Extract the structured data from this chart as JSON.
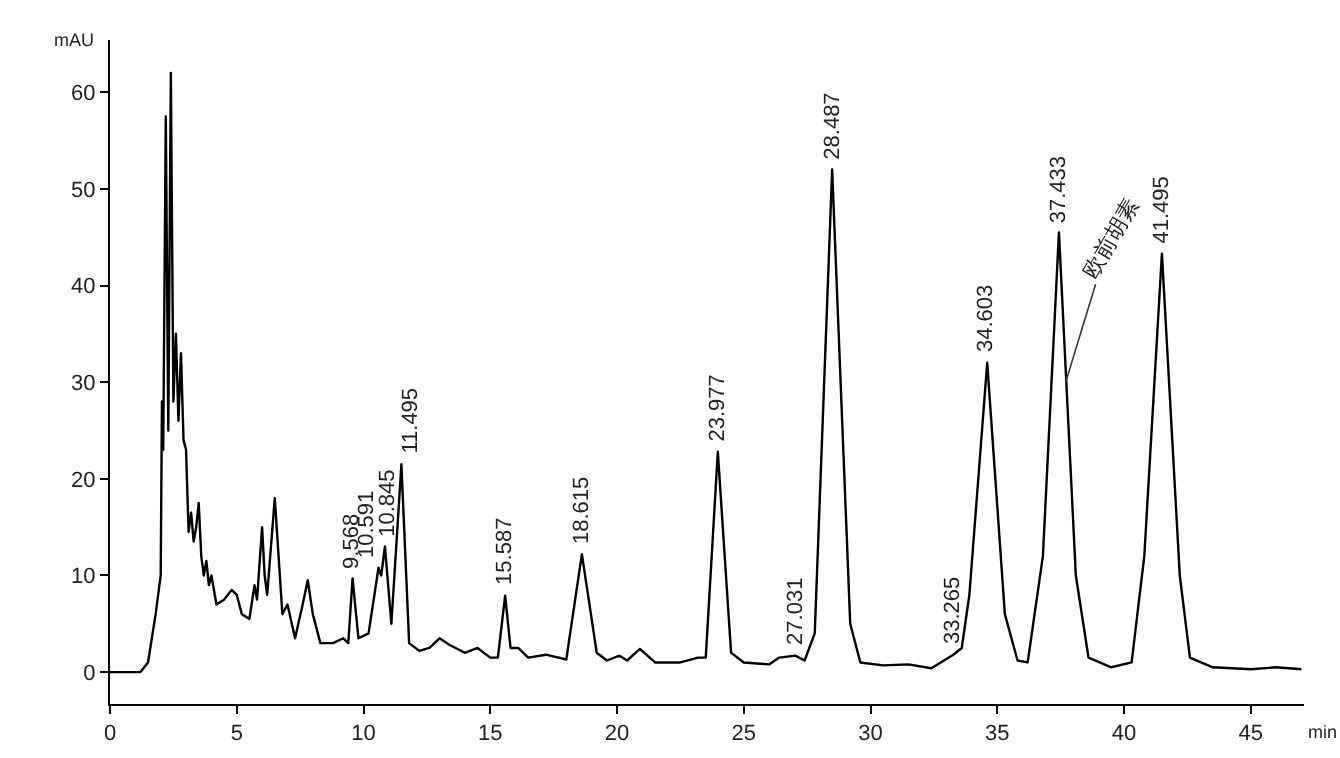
{
  "chart_data": {
    "type": "line",
    "xlabel": "min",
    "ylabel": "mAU",
    "xlim": [
      0,
      47.1
    ],
    "ylim": [
      -3.3,
      65.4
    ],
    "xticks": [
      0,
      5,
      10,
      15,
      20,
      25,
      30,
      35,
      40,
      45
    ],
    "yticks": [
      0,
      10,
      20,
      30,
      40,
      50,
      60
    ],
    "grid": false,
    "marker": "none",
    "line_style": "solid",
    "series": [
      {
        "color": "#000000",
        "x": [
          0,
          1.2,
          1.5,
          1.8,
          2.0,
          2.05,
          2.1,
          2.2,
          2.3,
          2.4,
          2.5,
          2.6,
          2.7,
          2.8,
          2.9,
          3.0,
          3.1,
          3.2,
          3.3,
          3.4,
          3.5,
          3.6,
          3.7,
          3.8,
          3.9,
          4.0,
          4.2,
          4.5,
          4.8,
          5.0,
          5.2,
          5.5,
          5.7,
          5.8,
          6.0,
          6.1,
          6.2,
          6.5,
          6.6,
          6.8,
          7.0,
          7.3,
          7.6,
          7.8,
          8.0,
          8.3,
          8.8,
          9.2,
          9.4,
          9.568,
          9.8,
          10.2,
          10.591,
          10.7,
          10.845,
          11.1,
          11.495,
          11.8,
          12.2,
          12.6,
          13.0,
          13.4,
          14.0,
          14.5,
          15.0,
          15.3,
          15.587,
          15.8,
          16.1,
          16.5,
          17.2,
          18.0,
          18.615,
          19.2,
          19.6,
          20.1,
          20.4,
          20.9,
          21.5,
          22.5,
          23.2,
          23.5,
          23.977,
          24.5,
          25,
          26,
          26.4,
          27.031,
          27.4,
          27.8,
          28.487,
          29.2,
          29.6,
          30.5,
          31.5,
          32.4,
          33.265,
          33.6,
          33.9,
          34.603,
          35.3,
          35.8,
          36.2,
          36.8,
          37.433,
          38.1,
          38.6,
          39.5,
          40.3,
          40.8,
          41.495,
          42.2,
          42.6,
          43.5,
          45,
          46,
          47
        ],
        "values": [
          0,
          0,
          1,
          6,
          10,
          28,
          23,
          57.5,
          25,
          62,
          28,
          35,
          26,
          33,
          24,
          23,
          14.5,
          16.5,
          13.5,
          15,
          17.5,
          12,
          10,
          11.5,
          9,
          10,
          7,
          7.5,
          8.5,
          8,
          6,
          5.5,
          9,
          7.5,
          15,
          10,
          8,
          18,
          14,
          6,
          7,
          3.5,
          7,
          9.5,
          6,
          3,
          3,
          3.5,
          3,
          9.7,
          3.5,
          4,
          10.8,
          10,
          13,
          5,
          21.5,
          3,
          2.2,
          2.5,
          3.5,
          2.8,
          2,
          2.5,
          1.5,
          1.5,
          7.9,
          2.5,
          2.5,
          1.5,
          1.8,
          1.3,
          12.2,
          2,
          1.2,
          1.7,
          1.2,
          2.4,
          1,
          1,
          1.5,
          1.5,
          22.8,
          2,
          1,
          0.8,
          1.5,
          1.7,
          1.2,
          4,
          52,
          5,
          1,
          0.7,
          0.8,
          0.4,
          1.8,
          2.5,
          8,
          32,
          6,
          1.2,
          1,
          12,
          45.5,
          10,
          1.5,
          0.5,
          1,
          12,
          43.3,
          10,
          1.5,
          0.5,
          0.3,
          0.5,
          0.3
        ]
      }
    ],
    "annotations": [
      {
        "text": "9.568",
        "x": 9.568,
        "y": 9.7
      },
      {
        "text": "10.591",
        "x": 10.591,
        "y": 10.8
      },
      {
        "text": "10.845",
        "x": 10.845,
        "y": 13
      },
      {
        "text": "11.495",
        "x": 11.495,
        "y": 21.5
      },
      {
        "text": "15.587",
        "x": 15.587,
        "y": 7.9
      },
      {
        "text": "18.615",
        "x": 18.615,
        "y": 12.2
      },
      {
        "text": "23.977",
        "x": 23.977,
        "y": 22.8
      },
      {
        "text": "27.031",
        "x": 27.031,
        "y": 1.7
      },
      {
        "text": "28.487",
        "x": 28.487,
        "y": 52
      },
      {
        "text": "33.265",
        "x": 33.265,
        "y": 1.8
      },
      {
        "text": "34.603",
        "x": 34.603,
        "y": 32
      },
      {
        "text": "37.433",
        "x": 37.433,
        "y": 45.5
      },
      {
        "text": "41.495",
        "x": 41.495,
        "y": 43.3
      },
      {
        "text": "欧前胡素",
        "x": 37.7,
        "y": 30
      }
    ]
  }
}
